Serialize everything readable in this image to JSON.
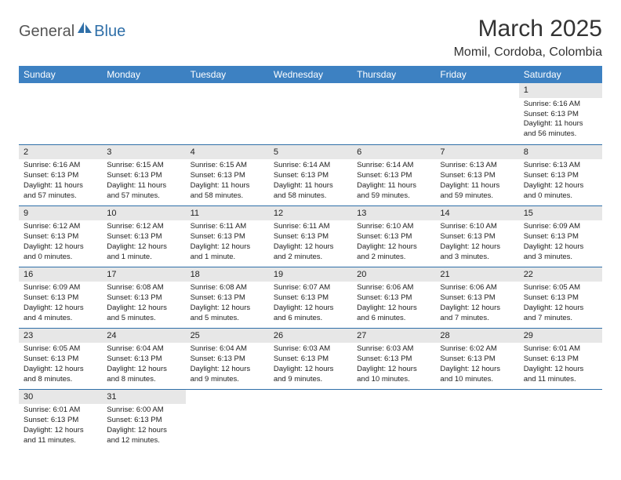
{
  "logo": {
    "text1": "General",
    "text2": "Blue"
  },
  "title": "March 2025",
  "location": "Momil, Cordoba, Colombia",
  "weekdays": [
    "Sunday",
    "Monday",
    "Tuesday",
    "Wednesday",
    "Thursday",
    "Friday",
    "Saturday"
  ],
  "colors": {
    "header_bg": "#3d81c2",
    "header_text": "#ffffff",
    "row_border": "#2f6fa8",
    "daynum_bg": "#e7e7e7",
    "logo_blue": "#2f6fa8"
  },
  "weeks": [
    [
      null,
      null,
      null,
      null,
      null,
      null,
      {
        "n": "1",
        "sr": "Sunrise: 6:16 AM",
        "ss": "Sunset: 6:13 PM",
        "dl": "Daylight: 11 hours and 56 minutes."
      }
    ],
    [
      {
        "n": "2",
        "sr": "Sunrise: 6:16 AM",
        "ss": "Sunset: 6:13 PM",
        "dl": "Daylight: 11 hours and 57 minutes."
      },
      {
        "n": "3",
        "sr": "Sunrise: 6:15 AM",
        "ss": "Sunset: 6:13 PM",
        "dl": "Daylight: 11 hours and 57 minutes."
      },
      {
        "n": "4",
        "sr": "Sunrise: 6:15 AM",
        "ss": "Sunset: 6:13 PM",
        "dl": "Daylight: 11 hours and 58 minutes."
      },
      {
        "n": "5",
        "sr": "Sunrise: 6:14 AM",
        "ss": "Sunset: 6:13 PM",
        "dl": "Daylight: 11 hours and 58 minutes."
      },
      {
        "n": "6",
        "sr": "Sunrise: 6:14 AM",
        "ss": "Sunset: 6:13 PM",
        "dl": "Daylight: 11 hours and 59 minutes."
      },
      {
        "n": "7",
        "sr": "Sunrise: 6:13 AM",
        "ss": "Sunset: 6:13 PM",
        "dl": "Daylight: 11 hours and 59 minutes."
      },
      {
        "n": "8",
        "sr": "Sunrise: 6:13 AM",
        "ss": "Sunset: 6:13 PM",
        "dl": "Daylight: 12 hours and 0 minutes."
      }
    ],
    [
      {
        "n": "9",
        "sr": "Sunrise: 6:12 AM",
        "ss": "Sunset: 6:13 PM",
        "dl": "Daylight: 12 hours and 0 minutes."
      },
      {
        "n": "10",
        "sr": "Sunrise: 6:12 AM",
        "ss": "Sunset: 6:13 PM",
        "dl": "Daylight: 12 hours and 1 minute."
      },
      {
        "n": "11",
        "sr": "Sunrise: 6:11 AM",
        "ss": "Sunset: 6:13 PM",
        "dl": "Daylight: 12 hours and 1 minute."
      },
      {
        "n": "12",
        "sr": "Sunrise: 6:11 AM",
        "ss": "Sunset: 6:13 PM",
        "dl": "Daylight: 12 hours and 2 minutes."
      },
      {
        "n": "13",
        "sr": "Sunrise: 6:10 AM",
        "ss": "Sunset: 6:13 PM",
        "dl": "Daylight: 12 hours and 2 minutes."
      },
      {
        "n": "14",
        "sr": "Sunrise: 6:10 AM",
        "ss": "Sunset: 6:13 PM",
        "dl": "Daylight: 12 hours and 3 minutes."
      },
      {
        "n": "15",
        "sr": "Sunrise: 6:09 AM",
        "ss": "Sunset: 6:13 PM",
        "dl": "Daylight: 12 hours and 3 minutes."
      }
    ],
    [
      {
        "n": "16",
        "sr": "Sunrise: 6:09 AM",
        "ss": "Sunset: 6:13 PM",
        "dl": "Daylight: 12 hours and 4 minutes."
      },
      {
        "n": "17",
        "sr": "Sunrise: 6:08 AM",
        "ss": "Sunset: 6:13 PM",
        "dl": "Daylight: 12 hours and 5 minutes."
      },
      {
        "n": "18",
        "sr": "Sunrise: 6:08 AM",
        "ss": "Sunset: 6:13 PM",
        "dl": "Daylight: 12 hours and 5 minutes."
      },
      {
        "n": "19",
        "sr": "Sunrise: 6:07 AM",
        "ss": "Sunset: 6:13 PM",
        "dl": "Daylight: 12 hours and 6 minutes."
      },
      {
        "n": "20",
        "sr": "Sunrise: 6:06 AM",
        "ss": "Sunset: 6:13 PM",
        "dl": "Daylight: 12 hours and 6 minutes."
      },
      {
        "n": "21",
        "sr": "Sunrise: 6:06 AM",
        "ss": "Sunset: 6:13 PM",
        "dl": "Daylight: 12 hours and 7 minutes."
      },
      {
        "n": "22",
        "sr": "Sunrise: 6:05 AM",
        "ss": "Sunset: 6:13 PM",
        "dl": "Daylight: 12 hours and 7 minutes."
      }
    ],
    [
      {
        "n": "23",
        "sr": "Sunrise: 6:05 AM",
        "ss": "Sunset: 6:13 PM",
        "dl": "Daylight: 12 hours and 8 minutes."
      },
      {
        "n": "24",
        "sr": "Sunrise: 6:04 AM",
        "ss": "Sunset: 6:13 PM",
        "dl": "Daylight: 12 hours and 8 minutes."
      },
      {
        "n": "25",
        "sr": "Sunrise: 6:04 AM",
        "ss": "Sunset: 6:13 PM",
        "dl": "Daylight: 12 hours and 9 minutes."
      },
      {
        "n": "26",
        "sr": "Sunrise: 6:03 AM",
        "ss": "Sunset: 6:13 PM",
        "dl": "Daylight: 12 hours and 9 minutes."
      },
      {
        "n": "27",
        "sr": "Sunrise: 6:03 AM",
        "ss": "Sunset: 6:13 PM",
        "dl": "Daylight: 12 hours and 10 minutes."
      },
      {
        "n": "28",
        "sr": "Sunrise: 6:02 AM",
        "ss": "Sunset: 6:13 PM",
        "dl": "Daylight: 12 hours and 10 minutes."
      },
      {
        "n": "29",
        "sr": "Sunrise: 6:01 AM",
        "ss": "Sunset: 6:13 PM",
        "dl": "Daylight: 12 hours and 11 minutes."
      }
    ],
    [
      {
        "n": "30",
        "sr": "Sunrise: 6:01 AM",
        "ss": "Sunset: 6:13 PM",
        "dl": "Daylight: 12 hours and 11 minutes."
      },
      {
        "n": "31",
        "sr": "Sunrise: 6:00 AM",
        "ss": "Sunset: 6:13 PM",
        "dl": "Daylight: 12 hours and 12 minutes."
      },
      null,
      null,
      null,
      null,
      null
    ]
  ]
}
